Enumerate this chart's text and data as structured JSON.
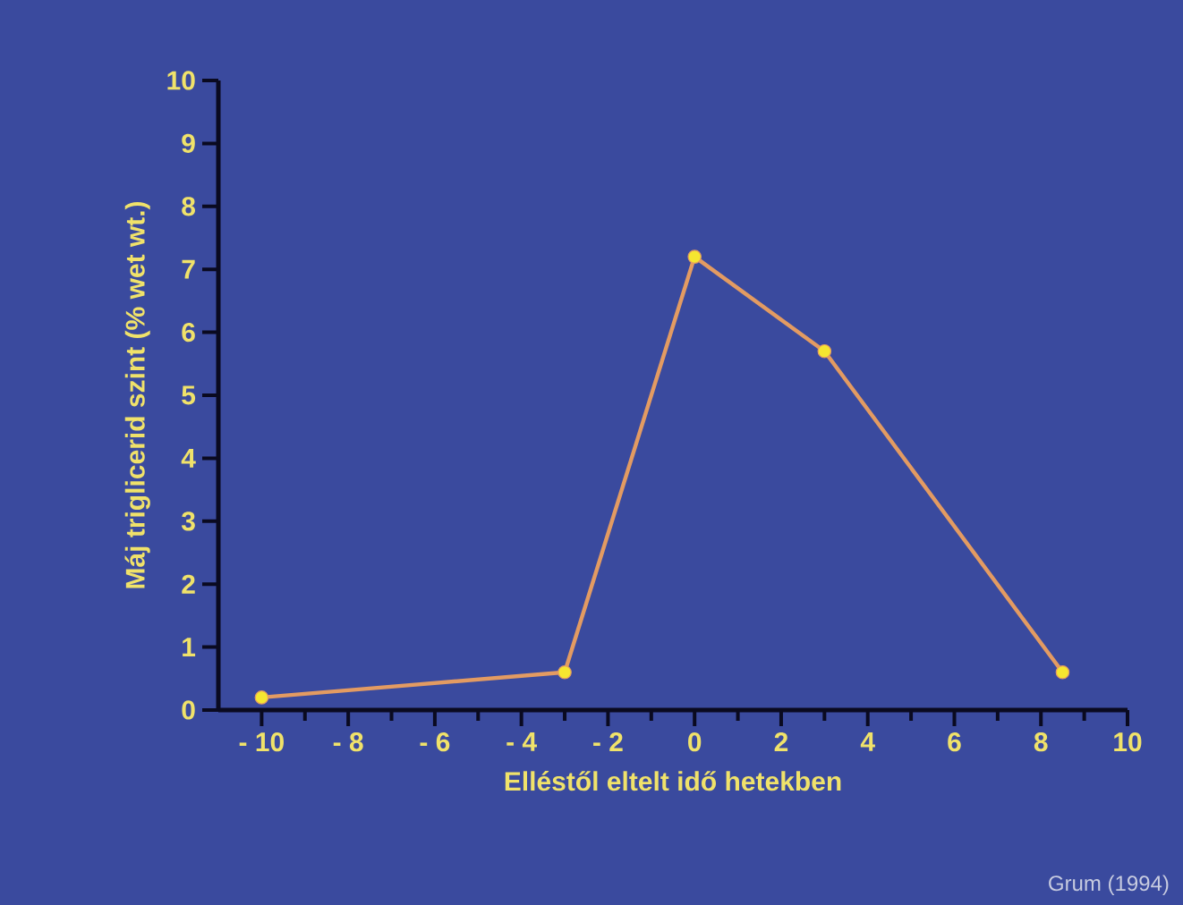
{
  "chart_data": {
    "type": "line",
    "xlabel": "Elléstől eltelt idő hetekben",
    "ylabel": "Máj triglicerid szint (% wet wt.)",
    "x": [
      -10,
      -3,
      0,
      3,
      8.5
    ],
    "series": [
      {
        "color": "#e39b62",
        "values": [
          0.2,
          0.6,
          7.2,
          5.7,
          0.6
        ]
      }
    ],
    "xlim": [
      -11,
      10
    ],
    "xticks": [
      {
        "value": -10,
        "label": "- 10"
      },
      {
        "value": -8,
        "label": "- 8"
      },
      {
        "value": -6,
        "label": "- 6"
      },
      {
        "value": -4,
        "label": "- 4"
      },
      {
        "value": -2,
        "label": "- 2"
      },
      0,
      2,
      4,
      6,
      8,
      10
    ],
    "ylim": [
      0,
      10
    ],
    "yticks": [
      0,
      1,
      2,
      3,
      4,
      5,
      6,
      7,
      8,
      9,
      10
    ],
    "grid": false,
    "marker": "circle",
    "line_style": "solid",
    "annotations": [
      "Grum (1994)"
    ]
  }
}
